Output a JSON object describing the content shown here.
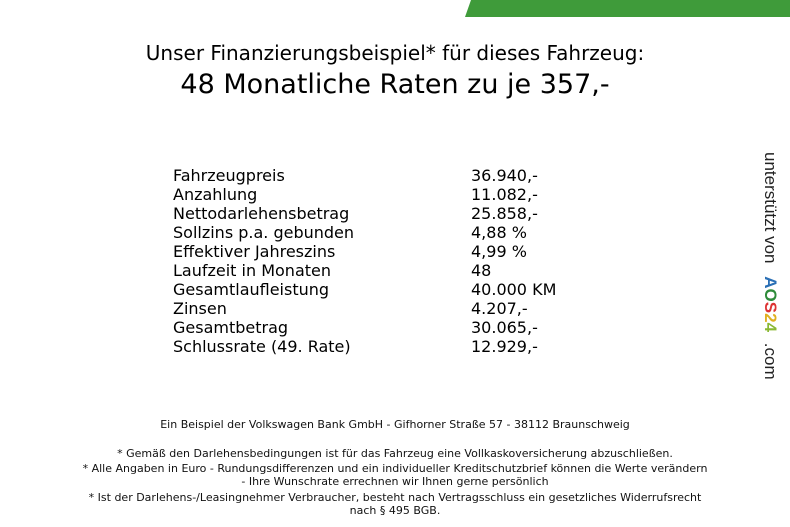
{
  "header": {
    "line1": "Unser Finanzierungsbeispiel* für dieses Fahrzeug:",
    "line2": "48 Monatliche Raten zu je 357,-"
  },
  "rows": [
    {
      "label": "Fahrzeugpreis",
      "value": "36.940,-"
    },
    {
      "label": "Anzahlung",
      "value": "11.082,-"
    },
    {
      "label": "Nettodarlehensbetrag",
      "value": "25.858,-"
    },
    {
      "label": "Sollzins p.a. gebunden",
      "value": "4,88 %"
    },
    {
      "label": "Effektiver Jahreszins",
      "value": "4,99 %"
    },
    {
      "label": "Laufzeit in Monaten",
      "value": "48"
    },
    {
      "label": "Gesamtlaufleistung",
      "value": "40.000 KM"
    },
    {
      "label": "Zinsen",
      "value": "4.207,-"
    },
    {
      "label": "Gesamtbetrag",
      "value": "30.065,-"
    },
    {
      "label": "Schlussrate (49. Rate)",
      "value": "12.929,-"
    }
  ],
  "side": {
    "text": "unterstützt von",
    "logo": "AOS24",
    "suffix": ".com"
  },
  "footer": {
    "bank": "Ein Beispiel der Volkswagen Bank GmbH - Gifhorner Straße 57 - 38112 Braunschweig",
    "note1": "* Gemäß den Darlehensbedingungen ist für das Fahrzeug eine Vollkaskoversicherung abzuschließen.",
    "note2a": "* Alle Angaben in Euro - Rundungsdifferenzen und ein individueller Kreditschutzbrief können die Werte verändern",
    "note2b": "- Ihre Wunschrate errechnen wir Ihnen gerne persönlich",
    "note3a": "* Ist der Darlehens-/Leasingnehmer Verbraucher, besteht nach Vertragsschluss ein gesetzliches Widerrufsrecht",
    "note3b": "nach § 495 BGB."
  },
  "colors": {
    "banner": "#3f9b3a"
  }
}
